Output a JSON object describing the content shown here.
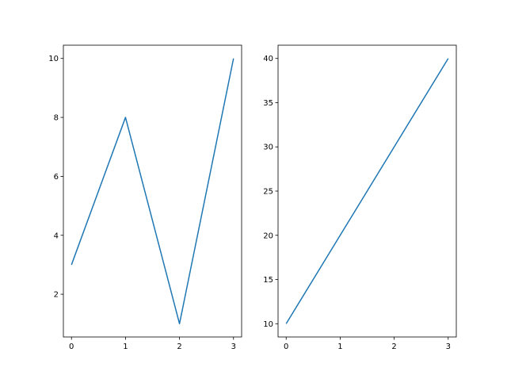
{
  "chart_data": [
    {
      "type": "line",
      "title": "",
      "xlabel": "",
      "ylabel": "",
      "x": [
        0,
        1,
        2,
        3
      ],
      "series": [
        {
          "values": [
            3,
            8,
            1,
            10
          ],
          "color": "#1f77b4"
        }
      ],
      "xlim": [
        -0.15,
        3.15
      ],
      "ylim": [
        0.55,
        10.45
      ],
      "xticks": [
        0,
        1,
        2,
        3
      ],
      "xtick_labels": [
        "0",
        "1",
        "2",
        "3"
      ],
      "yticks": [
        2,
        4,
        6,
        8,
        10
      ],
      "ytick_labels": [
        "2",
        "4",
        "6",
        "8",
        "10"
      ],
      "grid": false
    },
    {
      "type": "line",
      "title": "",
      "xlabel": "",
      "ylabel": "",
      "x": [
        0,
        1,
        2,
        3
      ],
      "series": [
        {
          "values": [
            10,
            20,
            30,
            40
          ],
          "color": "#1f77b4"
        }
      ],
      "xlim": [
        -0.15,
        3.15
      ],
      "ylim": [
        8.5,
        41.5
      ],
      "xticks": [
        0,
        1,
        2,
        3
      ],
      "xtick_labels": [
        "0",
        "1",
        "2",
        "3"
      ],
      "yticks": [
        10,
        15,
        20,
        25,
        30,
        35,
        40
      ],
      "ytick_labels": [
        "10",
        "15",
        "20",
        "25",
        "30",
        "35",
        "40"
      ],
      "grid": false
    }
  ]
}
